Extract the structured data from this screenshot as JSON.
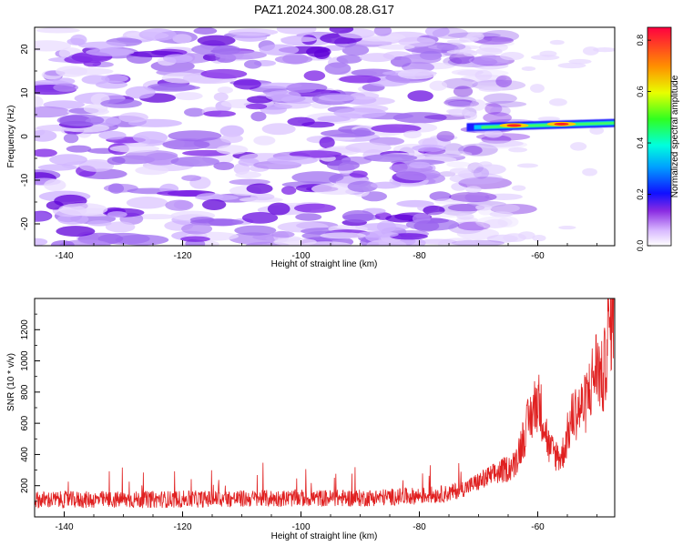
{
  "figure": {
    "title": "PAZ1.2024.300.08.28.G17"
  },
  "chart_data": [
    {
      "type": "heatmap",
      "xlabel": "Height of straight line (km)",
      "ylabel": "Frequency (Hz)",
      "xlim": [
        -145,
        -47
      ],
      "ylim": [
        -25,
        25
      ],
      "x_ticks": [
        -140,
        -120,
        -100,
        -80,
        -60
      ],
      "x_tick_labels": [
        "-140",
        "-120",
        "-100",
        "-80",
        "-60"
      ],
      "y_ticks": [
        -20,
        -10,
        0,
        10,
        20
      ],
      "y_tick_labels": [
        "-20",
        "-10",
        "0",
        "10",
        "20"
      ],
      "colorbar": {
        "label": "Normalized spectral amplitude",
        "range": [
          0,
          0.85
        ],
        "ticks": [
          0.0,
          0.2,
          0.4,
          0.6,
          0.8
        ],
        "tick_labels": [
          "0.0",
          "0.2",
          "0.4",
          "0.6",
          "0.8"
        ]
      },
      "dominant_signal": {
        "x_start": -72,
        "x_end": -47,
        "freq_start": 2,
        "freq_end": 3,
        "peak_amplitude": 0.8,
        "peak_x": [
          -64,
          -56
        ]
      },
      "grid": false
    },
    {
      "type": "line",
      "xlabel": "Height of straight line (km)",
      "ylabel": "SNR (10 * v/v)",
      "xlim": [
        -145,
        -47
      ],
      "ylim": [
        0,
        1400
      ],
      "x_ticks": [
        -140,
        -120,
        -100,
        -80,
        -60
      ],
      "x_tick_labels": [
        "-140",
        "-120",
        "-100",
        "-80",
        "-60"
      ],
      "y_ticks": [
        200,
        400,
        600,
        800,
        1000,
        1200
      ],
      "y_tick_labels": [
        "200",
        "400",
        "600",
        "800",
        "1000",
        "1200"
      ],
      "line_color": "#e02020",
      "envelope": {
        "x": [
          -145,
          -130,
          -115,
          -100,
          -90,
          -80,
          -75,
          -72,
          -68,
          -64,
          -62,
          -60,
          -59,
          -58,
          -56,
          -54,
          -52,
          -50,
          -49,
          -48,
          -47
        ],
        "y": [
          110,
          110,
          115,
          120,
          120,
          135,
          150,
          190,
          260,
          330,
          560,
          760,
          620,
          430,
          380,
          660,
          720,
          980,
          860,
          1200,
          1380
        ]
      },
      "grid": false
    }
  ]
}
